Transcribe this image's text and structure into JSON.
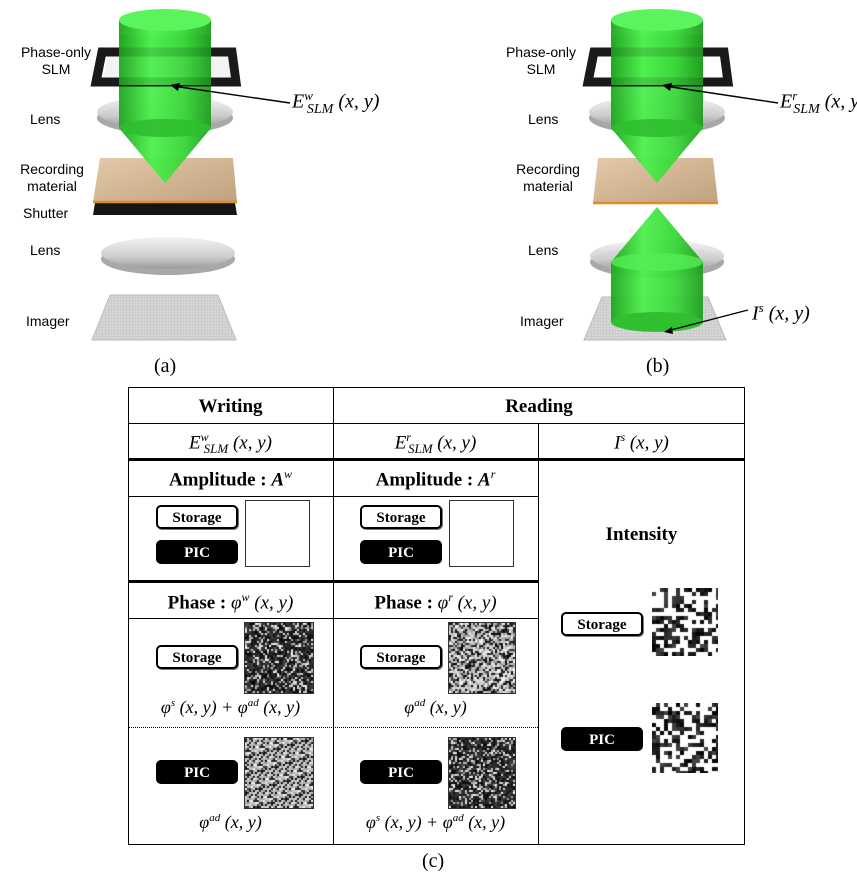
{
  "panel_a": {
    "labels": {
      "slm": "Phase-only\nSLM",
      "lens1": "Lens",
      "recording": "Recording\nmaterial",
      "shutter": "Shutter",
      "lens2": "Lens",
      "imager": "Imager"
    },
    "field": {
      "base": "E",
      "sup": "w",
      "sub": "SLM",
      "args": " (x, y)"
    },
    "caption": "(a)"
  },
  "panel_b": {
    "labels": {
      "slm": "Phase-only\nSLM",
      "lens1": "Lens",
      "recording": "Recording\nmaterial",
      "lens2": "Lens",
      "imager": "Imager"
    },
    "field": {
      "base": "E",
      "sup": "r",
      "sub": "SLM",
      "args": " (x, y)"
    },
    "intensity": {
      "base": "I",
      "sup": "s",
      "args": " (x, y)"
    },
    "caption": "(b)"
  },
  "table": {
    "writing_header": "Writing",
    "reading_header": "Reading",
    "col1": {
      "base": "E",
      "sup": "w",
      "sub": "SLM",
      "args": " (x, y)"
    },
    "col2": {
      "base": "E",
      "sup": "r",
      "sub": "SLM",
      "args": " (x, y)"
    },
    "col3": {
      "base": "I",
      "sup": "s",
      "args": " (x, y)"
    },
    "amp_w": {
      "label": "Amplitude : ",
      "base": "A",
      "sup": "w"
    },
    "amp_r": {
      "label": "Amplitude : ",
      "base": "A",
      "sup": "r"
    },
    "phase_w": {
      "label": "Phase : ",
      "base": "φ",
      "sup": "w",
      "args": " (x, y)"
    },
    "phase_r": {
      "label": "Phase : ",
      "base": "φ",
      "sup": "r",
      "args": " (x, y)"
    },
    "intensity_label": "Intensity",
    "storage_label": "Storage",
    "pic_label": "PIC",
    "w_storage_phase": {
      "a": "φ",
      "asup": "s",
      "aargs": " (x, y) + ",
      "b": "φ",
      "bsup": "ad",
      "bargs": " (x, y)"
    },
    "r_storage_phase": {
      "b": "φ",
      "bsup": "ad",
      "bargs": " (x, y)"
    },
    "w_pic_phase": {
      "b": "φ",
      "bsup": "ad",
      "bargs": " (x, y)"
    },
    "r_pic_phase": {
      "a": "φ",
      "asup": "s",
      "aargs": " (x, y) + ",
      "b": "φ",
      "bsup": "ad",
      "bargs": " (x, y)"
    }
  },
  "caption_c": "(c)",
  "colors": {
    "beam": "#33dd33",
    "beam_dark": "#1a9a1a",
    "slm": "#1a1a1a",
    "lens": "#cfcfcf",
    "recording": "#c9a983",
    "recording_edge": "#e08a2a"
  }
}
